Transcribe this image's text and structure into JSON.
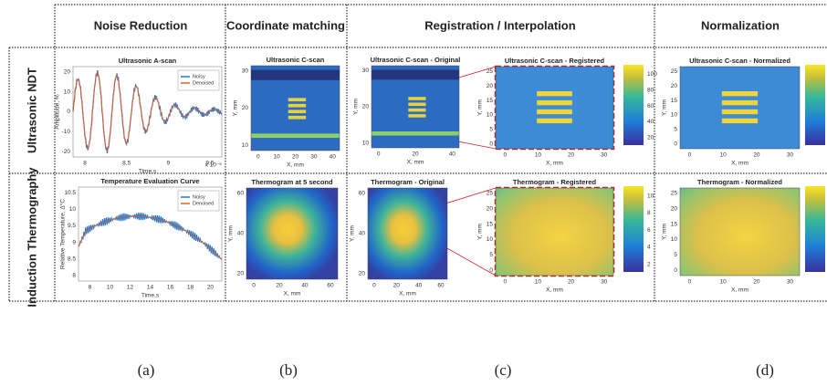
{
  "columns": [
    "Noise Reduction",
    "Coordinate matching",
    "Registration / Interpolation",
    "Normalization"
  ],
  "rows": [
    "Ultrasonic NDT",
    "Induction Thermography"
  ],
  "panels": [
    {
      "title": "Ultrasonic A-scan",
      "xlabel": "Time,s",
      "ylabel": "Amplitude, %",
      "xticks": [
        8,
        8.5,
        9,
        9.5
      ],
      "yticks": [
        20,
        10,
        0,
        -10,
        -20
      ],
      "exponent": "x 10⁻⁶",
      "legend": [
        "Noisy",
        "Denoised"
      ]
    },
    {
      "title": "Ultrasonic C-scan",
      "xlabel": "X, mm",
      "ylabel": "Y, mm",
      "xticks": [
        0,
        10,
        20,
        30,
        40
      ],
      "yticks": [
        30,
        20,
        10
      ]
    },
    {
      "title": "Ultrasonic C-scan - Original",
      "xlabel": "X, mm",
      "ylabel": "Y, mm",
      "xticks": [
        0,
        20,
        40
      ],
      "yticks": [
        30,
        20,
        10
      ]
    },
    {
      "title": "Ultrasonic C-scan - Registered",
      "xlabel": "X, mm",
      "ylabel": "Y, mm",
      "xticks": [
        0,
        10,
        20,
        30
      ],
      "yticks": [
        25,
        20,
        15,
        10,
        5,
        0
      ],
      "cbticks": [
        100,
        80,
        60,
        40,
        20
      ]
    },
    {
      "title": "Ultrasonic C-scan - Normalized",
      "xlabel": "X, mm",
      "ylabel": "Y, mm",
      "xticks": [
        0,
        10,
        20,
        30
      ],
      "yticks": [
        25,
        20,
        15,
        10,
        5,
        0
      ]
    },
    {
      "title": "Temperature Evaluation Curve",
      "xlabel": "Time,s",
      "ylabel": "Relative Temperature, Δ°C",
      "xticks": [
        8,
        10,
        12,
        14,
        16,
        18,
        20
      ],
      "yticks": [
        10.5,
        10,
        9.5,
        9,
        8.5,
        8
      ],
      "legend": [
        "Noisy",
        "Denoised"
      ]
    },
    {
      "title": "Thermogram at 5 second",
      "xlabel": "X, mm",
      "ylabel": "Y, mm",
      "xticks": [
        0,
        20,
        40,
        60
      ],
      "yticks": [
        60,
        40,
        20
      ]
    },
    {
      "title": "Thermogram - Original",
      "xlabel": "X, mm",
      "ylabel": "Y, mm",
      "xticks": [
        0,
        20,
        40,
        60
      ],
      "yticks": [
        60,
        40,
        20
      ]
    },
    {
      "title": "Thermogram - Registered",
      "xlabel": "X, mm",
      "ylabel": "Y, mm",
      "xticks": [
        0,
        10,
        20,
        30
      ],
      "yticks": [
        25,
        20,
        15,
        10,
        5,
        0
      ],
      "cbticks": [
        10,
        8,
        6,
        4,
        2
      ]
    },
    {
      "title": "Thermogram - Normalized",
      "xlabel": "X, mm",
      "ylabel": "Y, mm",
      "xticks": [
        0,
        10,
        20,
        30
      ],
      "yticks": [
        25,
        20,
        15,
        10,
        5,
        0
      ]
    }
  ],
  "captions": [
    "(a)",
    "(b)",
    "(c)",
    "(d)"
  ]
}
